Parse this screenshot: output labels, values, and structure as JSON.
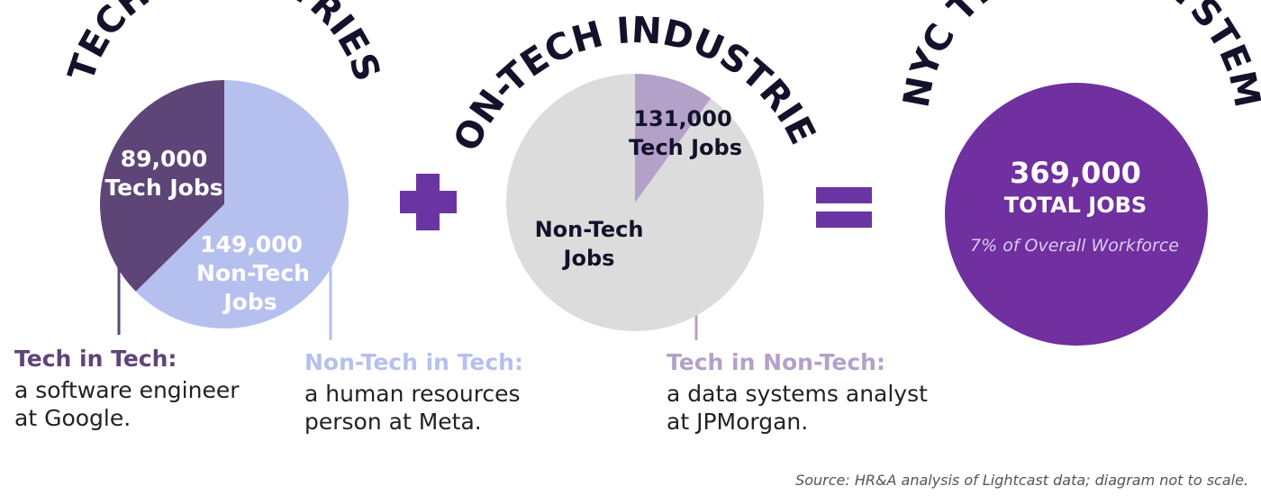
{
  "colors": {
    "dark_purple": "#5e4577",
    "light_blue": "#b6c0ef",
    "grey": "#dcdcdc",
    "lavender": "#b3a1c9",
    "operator": "#6a35a2",
    "total_circle": "#7030a0",
    "title_text": "#13122b"
  },
  "tech_industries": {
    "title": "TECH INDUSTRIES",
    "tech_value": 89000,
    "non_tech_value": 149000,
    "tech_label_1": "89,000",
    "tech_label_2": "Tech Jobs",
    "non_tech_label_1": "149,000",
    "non_tech_label_2": "Non-Tech",
    "non_tech_label_3": "Jobs"
  },
  "non_tech_industries": {
    "title": "NON-TECH INDUSTRIES",
    "tech_share_fraction": 0.1,
    "tech_label_1": "131,000",
    "tech_label_2": "Tech Jobs",
    "non_tech_label_1": "Non-Tech",
    "non_tech_label_2": "Jobs"
  },
  "ecosystem": {
    "title": "NYC TECH ECOSYSTEM",
    "total_label": "369,000",
    "total_sub": "TOTAL JOBS",
    "share_label": "7% of Overall Workforce"
  },
  "captions": {
    "tech_in_tech": {
      "title": "Tech in Tech:",
      "line1": "a software engineer",
      "line2": "at Google."
    },
    "non_tech_in_tech": {
      "title": "Non-Tech in Tech:",
      "line1": "a human resources",
      "line2": "person at Meta."
    },
    "tech_in_non_tech": {
      "title": "Tech in Non-Tech:",
      "line1": "a data systems analyst",
      "line2": "at JPMorgan."
    }
  },
  "source": "Source: HR&A analysis of Lightcast data; diagram not to scale."
}
